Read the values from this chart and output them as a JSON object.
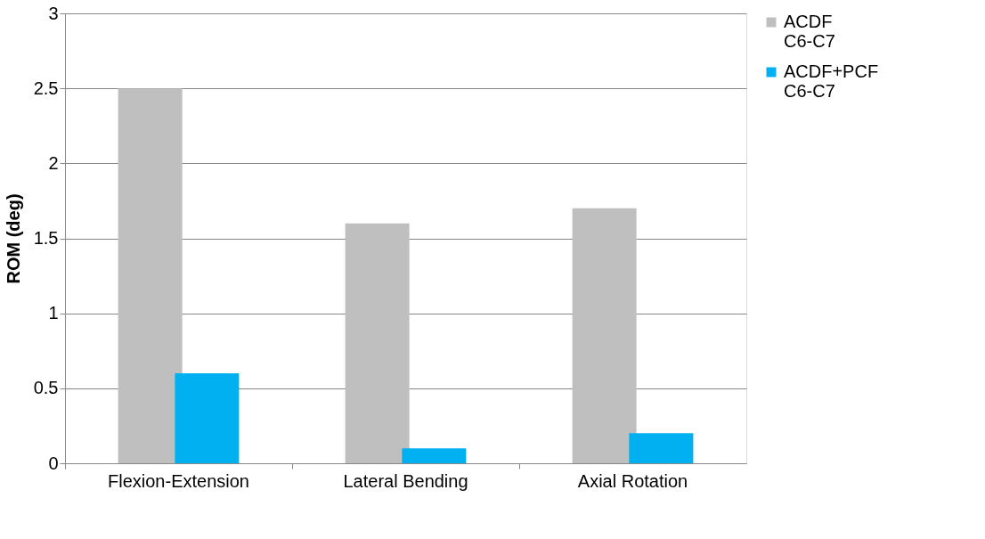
{
  "chart_data": {
    "type": "bar",
    "ylabel": "ROM (deg)",
    "categories": [
      "Flexion-Extension",
      "Lateral Bending",
      "Axial Rotation"
    ],
    "series": [
      {
        "name": "ACDF C6-C7",
        "color": "#bfbfbf",
        "values": [
          2.5,
          1.6,
          1.7
        ]
      },
      {
        "name": "ACDF+PCF C6-C7",
        "color": "#00b0f0",
        "values": [
          0.6,
          0.1,
          0.2
        ]
      }
    ],
    "ylim": [
      0,
      3
    ],
    "yticks": [
      0,
      0.5,
      1,
      1.5,
      2,
      2.5,
      3
    ],
    "grid": "y",
    "legend": "right"
  }
}
